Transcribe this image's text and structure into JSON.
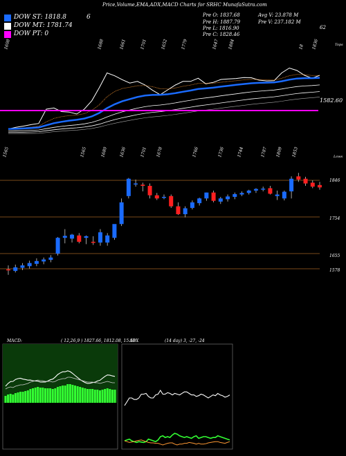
{
  "header": {
    "title": "Price,Volume,EMA,ADX,MACD Charts for SRHC MunafaSutra.com"
  },
  "legend": [
    {
      "label": "DOW ST: 1818.8",
      "color": "#1a6bff"
    },
    {
      "label": "DOW MT: 1781.74",
      "color": "#ffffff"
    },
    {
      "label": "DOW PT: 0",
      "color": "#ff00ff"
    }
  ],
  "legend_extra": "6",
  "ohlc": {
    "open": "Pre  O: 1837.68",
    "high": "Pre  H: 1887.79",
    "low": "Pre  L: 1816.90",
    "close": "Pre  C: 1828.46",
    "avg_vol": "Avg V: 23.878  M",
    "pre_vol": "Pre  V: 237.182  M",
    "corner": "62"
  },
  "colors": {
    "up": "#1a6bff",
    "down": "#ff2020",
    "ema_blue": "#1a6bff",
    "pivot": "#ff00ff",
    "macd_bg": "#0a3a0a",
    "macd_hist": "#33ff33"
  },
  "chart_data": [
    {
      "type": "line",
      "name": "upper-panel",
      "corner_label": "Tops",
      "pivot_label": "1582.60",
      "top_labels": [
        "1608",
        "1688",
        "1661",
        "1701",
        "1652",
        "1779",
        "1647",
        "1884",
        "18",
        "1836"
      ],
      "bottom_labels": [
        "1565",
        "1565",
        "1680",
        "1636",
        "1701",
        "1678",
        "1766",
        "1736",
        "1744",
        "1787",
        "1809",
        "1853"
      ],
      "close": [
        1618,
        1625,
        1630,
        1636,
        1641,
        1700,
        1705,
        1690,
        1688,
        1680,
        1700,
        1735,
        1790,
        1850,
        1838,
        1822,
        1808,
        1815,
        1800,
        1778,
        1760,
        1780,
        1800,
        1815,
        1815,
        1828,
        1805,
        1811,
        1823,
        1825,
        1827,
        1831,
        1830,
        1820,
        1817,
        1818,
        1850,
        1870,
        1860,
        1840,
        1828,
        1840
      ],
      "ema_fast_color": "#1a6bff"
    },
    {
      "type": "bar",
      "name": "candles",
      "corner_label": "Lows",
      "price_labels": [
        "1846",
        "1754",
        "1655",
        "1578"
      ],
      "candles": [
        {
          "o": 1620,
          "h": 1630,
          "l": 1606,
          "c": 1618
        },
        {
          "o": 1616,
          "h": 1632,
          "l": 1612,
          "c": 1625
        },
        {
          "o": 1624,
          "h": 1636,
          "l": 1618,
          "c": 1630
        },
        {
          "o": 1628,
          "h": 1642,
          "l": 1622,
          "c": 1636
        },
        {
          "o": 1634,
          "h": 1648,
          "l": 1628,
          "c": 1641
        },
        {
          "o": 1640,
          "h": 1650,
          "l": 1633,
          "c": 1645
        },
        {
          "o": 1644,
          "h": 1656,
          "l": 1638,
          "c": 1650
        },
        {
          "o": 1660,
          "h": 1702,
          "l": 1655,
          "c": 1700
        },
        {
          "o": 1700,
          "h": 1722,
          "l": 1686,
          "c": 1705
        },
        {
          "o": 1698,
          "h": 1710,
          "l": 1688,
          "c": 1708
        },
        {
          "o": 1706,
          "h": 1712,
          "l": 1686,
          "c": 1690
        },
        {
          "o": 1700,
          "h": 1706,
          "l": 1684,
          "c": 1704
        },
        {
          "o": 1690,
          "h": 1704,
          "l": 1682,
          "c": 1688
        },
        {
          "o": 1688,
          "h": 1722,
          "l": 1680,
          "c": 1714
        },
        {
          "o": 1688,
          "h": 1712,
          "l": 1680,
          "c": 1706
        },
        {
          "o": 1700,
          "h": 1734,
          "l": 1695,
          "c": 1735
        },
        {
          "o": 1735,
          "h": 1800,
          "l": 1730,
          "c": 1790
        },
        {
          "o": 1806,
          "h": 1852,
          "l": 1800,
          "c": 1850
        },
        {
          "o": 1838,
          "h": 1848,
          "l": 1830,
          "c": 1838
        },
        {
          "o": 1835,
          "h": 1840,
          "l": 1818,
          "c": 1832
        },
        {
          "o": 1832,
          "h": 1838,
          "l": 1800,
          "c": 1808
        },
        {
          "o": 1808,
          "h": 1814,
          "l": 1796,
          "c": 1800
        },
        {
          "o": 1802,
          "h": 1810,
          "l": 1798,
          "c": 1804
        },
        {
          "o": 1806,
          "h": 1810,
          "l": 1776,
          "c": 1780
        },
        {
          "o": 1780,
          "h": 1790,
          "l": 1758,
          "c": 1760
        },
        {
          "o": 1760,
          "h": 1780,
          "l": 1752,
          "c": 1775
        },
        {
          "o": 1776,
          "h": 1795,
          "l": 1772,
          "c": 1790
        },
        {
          "o": 1788,
          "h": 1802,
          "l": 1782,
          "c": 1800
        },
        {
          "o": 1800,
          "h": 1815,
          "l": 1794,
          "c": 1815
        },
        {
          "o": 1815,
          "h": 1820,
          "l": 1790,
          "c": 1794
        },
        {
          "o": 1792,
          "h": 1804,
          "l": 1786,
          "c": 1800
        },
        {
          "o": 1798,
          "h": 1810,
          "l": 1792,
          "c": 1805
        },
        {
          "o": 1804,
          "h": 1815,
          "l": 1798,
          "c": 1811
        },
        {
          "o": 1810,
          "h": 1818,
          "l": 1806,
          "c": 1814
        },
        {
          "o": 1814,
          "h": 1822,
          "l": 1810,
          "c": 1820
        },
        {
          "o": 1820,
          "h": 1826,
          "l": 1814,
          "c": 1824
        },
        {
          "o": 1824,
          "h": 1830,
          "l": 1818,
          "c": 1825
        },
        {
          "o": 1826,
          "h": 1832,
          "l": 1810,
          "c": 1812
        },
        {
          "o": 1806,
          "h": 1820,
          "l": 1796,
          "c": 1810
        },
        {
          "o": 1800,
          "h": 1820,
          "l": 1795,
          "c": 1817
        },
        {
          "o": 1818,
          "h": 1856,
          "l": 1800,
          "c": 1850
        },
        {
          "o": 1856,
          "h": 1865,
          "l": 1842,
          "c": 1848
        },
        {
          "o": 1850,
          "h": 1855,
          "l": 1832,
          "c": 1838
        },
        {
          "o": 1840,
          "h": 1846,
          "l": 1826,
          "c": 1830
        },
        {
          "o": 1834,
          "h": 1842,
          "l": 1822,
          "c": 1828
        }
      ]
    },
    {
      "type": "area",
      "name": "macd",
      "label": "MACD:",
      "params": "( 12,26,9 ) 1827.66,  1812.08,  15.58",
      "hist": [
        10,
        12,
        13,
        12,
        14,
        15,
        16,
        16,
        17,
        18,
        20,
        21,
        22,
        23,
        22,
        22,
        21,
        21,
        21,
        20,
        21,
        23,
        24,
        25,
        25,
        27,
        27,
        26,
        25,
        24,
        23,
        22,
        21,
        20,
        20,
        20,
        19,
        19,
        18,
        19,
        20,
        21,
        20,
        19,
        19
      ]
    },
    {
      "type": "line",
      "name": "adx",
      "label": "ADX",
      "params": "(14  day)  3,  -27,  -24",
      "adx": [
        30,
        35,
        40,
        40,
        38,
        38,
        40,
        45,
        45,
        46,
        42,
        40,
        40,
        44,
        45,
        50,
        45,
        45,
        47,
        46,
        44,
        46,
        45,
        44,
        46,
        48,
        48,
        46,
        44,
        44,
        42,
        43,
        45,
        44,
        42,
        40,
        42,
        44,
        43,
        46,
        44,
        43,
        41,
        42,
        44
      ],
      "di_plus": [
        20,
        22,
        24,
        20,
        18,
        16,
        18,
        17,
        16,
        18,
        24,
        22,
        20,
        18,
        22,
        30,
        32,
        28,
        30,
        28,
        34,
        38,
        36,
        32,
        30,
        28,
        30,
        28,
        26,
        30,
        32,
        26,
        28,
        30,
        30,
        28,
        26,
        28,
        28,
        32,
        30,
        28,
        26,
        24,
        22
      ],
      "di_minus": [
        20,
        18,
        16,
        17,
        18,
        20,
        21,
        22,
        20,
        18,
        16,
        15,
        15,
        14,
        14,
        12,
        10,
        12,
        14,
        15,
        15,
        12,
        10,
        12,
        12,
        14,
        14,
        16,
        15,
        14,
        12,
        14,
        12,
        12,
        13,
        15,
        16,
        17,
        18,
        18,
        16,
        15,
        14,
        16,
        18
      ]
    }
  ]
}
